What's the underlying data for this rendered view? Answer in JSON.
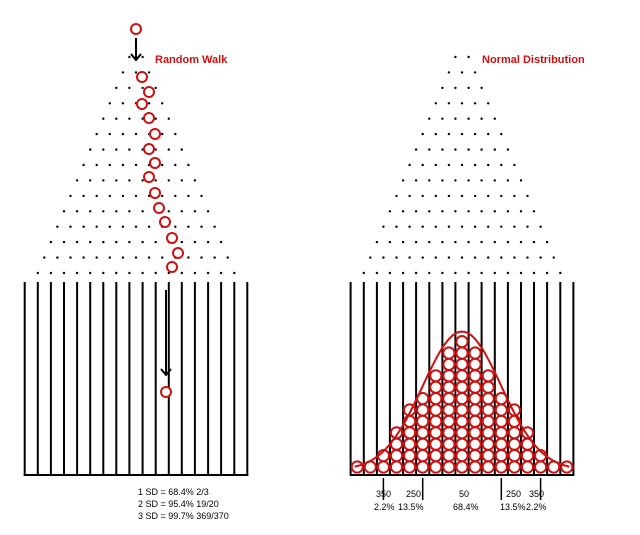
{
  "titles": {
    "left": "Random Walk",
    "right": "Normal Distribution"
  },
  "stats": {
    "line1": "1 SD = 68.4% 2/3",
    "line2": "2 SD = 95.4% 19/20",
    "line3": "3 SD = 99.7% 369/370"
  },
  "bin_labels": {
    "counts": [
      "350",
      "250",
      "50",
      "250",
      "350"
    ],
    "percents": [
      "2.2%",
      "13.5%",
      "68.4%",
      "13.5%",
      "2.2%"
    ]
  },
  "colors": {
    "ball": "#cc1111",
    "curve": "#cc1111",
    "lines": "#000000",
    "pegs": "#000000"
  },
  "icons": {
    "drop_arrow": "down-arrow-icon",
    "ball": "ball-icon"
  },
  "galton": {
    "peg_rows": 15,
    "bins": 17,
    "histogram_counts": [
      1,
      1,
      2,
      4,
      6,
      7,
      9,
      11,
      12,
      11,
      9,
      7,
      6,
      4,
      2,
      1,
      1
    ]
  }
}
